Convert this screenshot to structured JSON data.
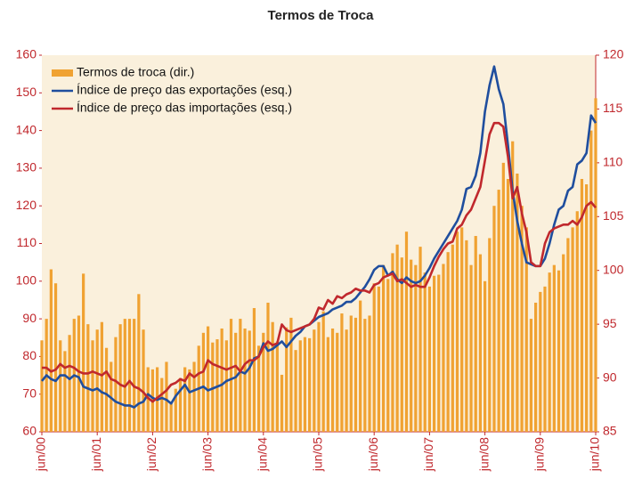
{
  "chart_data": {
    "type": "combo",
    "title": "Termos de Troca",
    "categories": [
      "jun/00",
      null,
      null,
      null,
      null,
      null,
      null,
      null,
      null,
      null,
      null,
      null,
      "jun/01",
      null,
      null,
      null,
      null,
      null,
      null,
      null,
      null,
      null,
      null,
      null,
      "jun/02",
      null,
      null,
      null,
      null,
      null,
      null,
      null,
      null,
      null,
      null,
      null,
      "jun/03",
      null,
      null,
      null,
      null,
      null,
      null,
      null,
      null,
      null,
      null,
      null,
      "jun/04",
      null,
      null,
      null,
      null,
      null,
      null,
      null,
      null,
      null,
      null,
      null,
      "jun/05",
      null,
      null,
      null,
      null,
      null,
      null,
      null,
      null,
      null,
      null,
      null,
      "jun/06",
      null,
      null,
      null,
      null,
      null,
      null,
      null,
      null,
      null,
      null,
      null,
      "jun/07",
      null,
      null,
      null,
      null,
      null,
      null,
      null,
      null,
      null,
      null,
      null,
      "jun/08",
      null,
      null,
      null,
      null,
      null,
      null,
      null,
      null,
      null,
      null,
      null,
      "jun/09",
      null,
      null,
      null,
      null,
      null,
      null,
      null,
      null,
      null,
      null,
      null,
      "jun/10"
    ],
    "series": [
      {
        "name": "Termos de troca (dir.)",
        "type": "bar",
        "axis": "y2",
        "color": "#f0a232",
        "values": [
          93.5,
          95.5,
          100.1,
          98.8,
          93.5,
          92.5,
          94.0,
          95.5,
          95.8,
          99.7,
          95,
          93.5,
          94.5,
          95.2,
          92.8,
          91.5,
          93.8,
          95,
          95.5,
          95.5,
          95.5,
          97.8,
          94.5,
          91,
          90.8,
          91,
          90,
          91.5,
          87.8,
          89,
          90,
          91,
          90.8,
          91.5,
          93,
          94.2,
          94.8,
          93.3,
          93.6,
          94.6,
          93.5,
          95.5,
          94.2,
          95.5,
          94.6,
          94.4,
          96.5,
          93,
          94.2,
          97,
          95.2,
          93.4,
          90.3,
          94.7,
          95.6,
          92.6,
          93.5,
          93.8,
          93.7,
          94.5,
          95.2,
          96.2,
          93.8,
          94.6,
          94.2,
          96,
          94.5,
          95.8,
          95.6,
          97.2,
          95.5,
          95.8,
          98.8,
          98.5,
          100.5,
          99.2,
          101.6,
          102.4,
          101.2,
          103.6,
          101,
          100.5,
          102.2,
          99.8,
          98.5,
          99.5,
          99.6,
          100.6,
          101.7,
          102.4,
          103.6,
          104,
          102.8,
          100.5,
          103.2,
          101.5,
          99,
          103,
          106,
          107.5,
          110,
          108.5,
          112,
          109,
          106,
          104,
          95.5,
          97,
          98,
          98.5,
          99.8,
          100.5,
          100,
          101.5,
          103,
          104,
          105.5,
          108.5,
          108,
          113,
          116
        ]
      },
      {
        "name": "Índice de preço das exportações (esq.)",
        "type": "line",
        "axis": "y",
        "color": "#1f4e9e",
        "values": [
          73.5,
          75,
          74,
          73.5,
          75,
          75,
          74,
          75,
          74.5,
          72,
          71.5,
          71,
          71.5,
          70.5,
          70,
          69,
          68,
          67.5,
          67,
          67,
          66.5,
          67.5,
          68,
          70,
          69,
          68.5,
          69,
          68.5,
          67.5,
          69.5,
          71,
          72.5,
          70.5,
          71,
          71.5,
          72,
          71,
          71.5,
          72,
          72.5,
          73.5,
          74,
          74.5,
          76,
          75.5,
          77,
          79.5,
          80,
          83.5,
          81.5,
          82,
          83,
          84,
          82.5,
          84,
          85.5,
          86.5,
          88,
          88.5,
          89.5,
          90.5,
          91,
          91.5,
          92.5,
          93,
          93.5,
          94.5,
          94.5,
          95.5,
          97,
          98.5,
          100.5,
          103,
          104,
          104,
          101.5,
          102.5,
          100.5,
          99.5,
          101,
          100,
          99.5,
          100,
          101.5,
          103.5,
          106,
          108,
          110,
          112,
          114,
          116,
          119,
          124.5,
          125,
          128,
          134,
          145,
          152,
          157,
          151,
          147,
          136,
          124,
          116,
          110,
          105,
          104.5,
          104,
          104,
          106,
          110,
          115,
          119,
          120,
          124,
          125,
          131,
          132,
          134,
          144,
          142
        ]
      },
      {
        "name": "Índice de preço das importações (esq.)",
        "type": "line",
        "axis": "y",
        "color": "#c0282d",
        "values": [
          77,
          77,
          76,
          76.5,
          78,
          77,
          77.5,
          77,
          76,
          75.5,
          75.5,
          76,
          75.5,
          75,
          76,
          74,
          73.5,
          72.5,
          72,
          73.5,
          72,
          71.5,
          70.5,
          69,
          68,
          69,
          70,
          71,
          72.5,
          73,
          74,
          73.5,
          75.5,
          74.5,
          75.5,
          76,
          79,
          78,
          77.5,
          77,
          76.5,
          77,
          77.5,
          76,
          78,
          79,
          79,
          80,
          82.5,
          84,
          83,
          83.5,
          88.5,
          87,
          86.5,
          87,
          87.5,
          88,
          88.5,
          90,
          93,
          92.5,
          95,
          94,
          96,
          95.5,
          96.5,
          97,
          98,
          97.5,
          97.5,
          97,
          99,
          99.5,
          101,
          101.5,
          102,
          100,
          100.5,
          99.5,
          98.5,
          99,
          98.5,
          98.5,
          101,
          104,
          106.5,
          108.5,
          110,
          110.5,
          114,
          115,
          117.5,
          119,
          122,
          125,
          132,
          139,
          142,
          142,
          141,
          133,
          122,
          125,
          118,
          113,
          105,
          104,
          104,
          110,
          113,
          114,
          114.5,
          115,
          115,
          116,
          115,
          117,
          120,
          121,
          119.5
        ]
      }
    ],
    "ylim": [
      60,
      160
    ],
    "yticks": [
      60,
      70,
      80,
      90,
      100,
      110,
      120,
      130,
      140,
      150,
      160
    ],
    "y2lim": [
      85,
      120
    ],
    "y2ticks": [
      85,
      90,
      95,
      100,
      105,
      110,
      115,
      120
    ],
    "legend": "upper left"
  }
}
